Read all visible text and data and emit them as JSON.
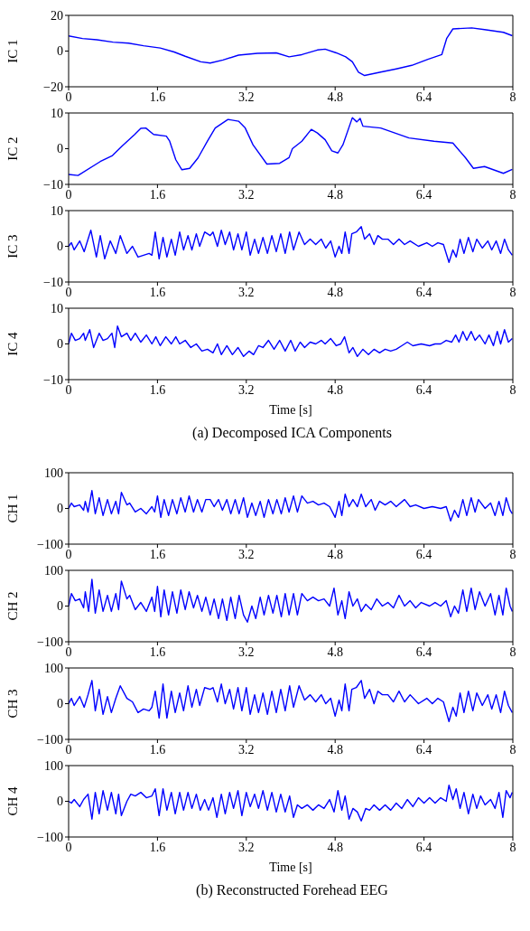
{
  "chart_data": [
    {
      "type": "line",
      "ylabel": "IC 1",
      "color": "#0000ff",
      "xlim": [
        0,
        8
      ],
      "xticks": [
        0,
        1.6,
        3.2,
        4.8,
        6.4,
        8
      ],
      "ylim": [
        -20,
        20
      ],
      "yticks": [
        -20,
        0,
        20
      ],
      "x": [
        0,
        0.25,
        0.51,
        0.8,
        1.08,
        1.35,
        1.65,
        1.9,
        2.1,
        2.38,
        2.55,
        2.78,
        3.06,
        3.4,
        3.74,
        3.97,
        4.2,
        4.48,
        4.62,
        4.82,
        4.99,
        5.11,
        5.22,
        5.33,
        5.62,
        5.9,
        6.18,
        6.47,
        6.72,
        6.81,
        6.92,
        7.26,
        7.49,
        7.83,
        7.99
      ],
      "values": [
        8.5,
        7,
        6.3,
        5,
        4.4,
        3,
        1.7,
        -0.5,
        -2.9,
        -6,
        -6.7,
        -5,
        -2.3,
        -1.3,
        -1,
        -3.2,
        -2,
        0.6,
        1.1,
        -1,
        -3.2,
        -6,
        -11.8,
        -13.7,
        -11.8,
        -10,
        -8,
        -4.6,
        -2,
        7.2,
        12.4,
        13,
        12,
        10.5,
        8.6
      ]
    },
    {
      "type": "line",
      "ylabel": "IC 2",
      "color": "#0000ff",
      "xlim": [
        0,
        8
      ],
      "xticks": [
        0,
        1.6,
        3.2,
        4.8,
        6.4,
        8
      ],
      "ylim": [
        -10,
        10
      ],
      "yticks": [
        -10,
        0,
        10
      ],
      "x": [
        0,
        0.17,
        0.57,
        0.79,
        0.96,
        1.19,
        1.3,
        1.39,
        1.53,
        1.76,
        1.82,
        1.93,
        2.04,
        2.18,
        2.33,
        2.5,
        2.64,
        2.87,
        3.06,
        3.18,
        3.32,
        3.57,
        3.8,
        3.97,
        4.03,
        4.2,
        4.37,
        4.48,
        4.62,
        4.74,
        4.85,
        4.94,
        5.11,
        5.19,
        5.25,
        5.3,
        5.62,
        6.13,
        6.58,
        6.92,
        7.15,
        7.29,
        7.49,
        7.83,
        7.99
      ],
      "values": [
        -7.2,
        -7.5,
        -3.6,
        -1.9,
        0.7,
        4,
        5.7,
        5.8,
        4,
        3.5,
        2.1,
        -3.1,
        -5.9,
        -5.5,
        -2.6,
        2.1,
        5.8,
        8.2,
        7.7,
        5.8,
        1.1,
        -4.3,
        -4.1,
        -2.5,
        0,
        2.1,
        5.4,
        4.4,
        2.5,
        -0.6,
        -1.2,
        1.1,
        8.7,
        7.5,
        8.5,
        6.3,
        5.8,
        3,
        2.1,
        1.6,
        -2.6,
        -5.5,
        -5,
        -6.9,
        -5.8
      ]
    },
    {
      "type": "line",
      "ylabel": "IC 3",
      "color": "#0000ff",
      "xlim": [
        0,
        8
      ],
      "xticks": [
        0,
        1.6,
        3.2,
        4.8,
        6.4,
        8
      ],
      "ylim": [
        -10,
        10
      ],
      "yticks": [
        -10,
        0,
        10
      ],
      "x": [
        0,
        0.05,
        0.1,
        0.2,
        0.28,
        0.4,
        0.5,
        0.57,
        0.65,
        0.75,
        0.85,
        0.93,
        1.05,
        1.15,
        1.25,
        1.35,
        1.45,
        1.5,
        1.56,
        1.63,
        1.7,
        1.77,
        1.85,
        1.92,
        2.0,
        2.07,
        2.15,
        2.22,
        2.3,
        2.36,
        2.45,
        2.55,
        2.6,
        2.68,
        2.75,
        2.82,
        2.9,
        2.97,
        3.05,
        3.12,
        3.2,
        3.27,
        3.35,
        3.42,
        3.5,
        3.58,
        3.66,
        3.74,
        3.82,
        3.9,
        3.98,
        4.05,
        4.15,
        4.25,
        4.35,
        4.45,
        4.55,
        4.63,
        4.72,
        4.8,
        4.87,
        4.92,
        4.98,
        5.05,
        5.1,
        5.18,
        5.27,
        5.33,
        5.42,
        5.5,
        5.57,
        5.65,
        5.75,
        5.85,
        5.95,
        6.05,
        6.15,
        6.3,
        6.45,
        6.55,
        6.65,
        6.75,
        6.85,
        6.92,
        6.98,
        7.05,
        7.12,
        7.2,
        7.28,
        7.35,
        7.45,
        7.55,
        7.62,
        7.7,
        7.78,
        7.85,
        7.92,
        7.99
      ],
      "values": [
        0,
        1,
        -1,
        1.5,
        -1.5,
        4.5,
        -3,
        3,
        -3.5,
        1.5,
        -2,
        3,
        -2,
        0,
        -3,
        -2.5,
        -2,
        -2.5,
        4,
        -3.5,
        2.5,
        -3,
        2,
        -2.5,
        4,
        -1,
        3,
        -1,
        3.5,
        0,
        4,
        3,
        4,
        0,
        4.5,
        0.5,
        4,
        -1,
        3.5,
        -1,
        4,
        -2.5,
        2,
        -2,
        2.5,
        -2,
        3,
        -1.5,
        3.5,
        -2,
        4,
        -1,
        4,
        0.5,
        2,
        0.5,
        2,
        -0.5,
        1.5,
        -3,
        0,
        -2,
        4,
        -2,
        3.5,
        4,
        5.5,
        2,
        3.5,
        0.5,
        3,
        2,
        2,
        0.5,
        2,
        0.5,
        1.5,
        0,
        1,
        0,
        1,
        0.5,
        -4.5,
        -1,
        -3,
        2,
        -2,
        2.5,
        -1.5,
        2,
        -0.5,
        1.5,
        -1,
        1.5,
        -2,
        2,
        -1,
        -2.5
      ]
    },
    {
      "type": "line",
      "ylabel": "IC 4",
      "xlabel": "Time [s]",
      "annotations": [
        "(a) Decomposed ICA Components"
      ],
      "color": "#0000ff",
      "xlim": [
        0,
        8
      ],
      "xticks": [
        0,
        1.6,
        3.2,
        4.8,
        6.4,
        8
      ],
      "ylim": [
        -10,
        10
      ],
      "yticks": [
        -10,
        0,
        10
      ],
      "x": [
        0,
        0.05,
        0.12,
        0.2,
        0.27,
        0.3,
        0.38,
        0.45,
        0.55,
        0.62,
        0.7,
        0.78,
        0.83,
        0.88,
        0.95,
        1.05,
        1.12,
        1.2,
        1.3,
        1.4,
        1.5,
        1.57,
        1.65,
        1.75,
        1.85,
        1.93,
        2.0,
        2.1,
        2.2,
        2.3,
        2.4,
        2.5,
        2.6,
        2.68,
        2.75,
        2.85,
        2.95,
        3.05,
        3.15,
        3.25,
        3.33,
        3.42,
        3.5,
        3.6,
        3.7,
        3.8,
        3.9,
        4.0,
        4.08,
        4.17,
        4.25,
        4.35,
        4.45,
        4.55,
        4.62,
        4.72,
        4.82,
        4.9,
        4.97,
        5.05,
        5.12,
        5.2,
        5.3,
        5.4,
        5.5,
        5.6,
        5.7,
        5.8,
        5.9,
        6.0,
        6.1,
        6.2,
        6.35,
        6.5,
        6.6,
        6.7,
        6.8,
        6.9,
        6.97,
        7.03,
        7.1,
        7.17,
        7.25,
        7.32,
        7.4,
        7.5,
        7.57,
        7.65,
        7.72,
        7.78,
        7.85,
        7.92,
        7.99
      ],
      "values": [
        0,
        3,
        1,
        1.5,
        3,
        1,
        4,
        -1,
        3,
        1,
        1.5,
        3,
        -1,
        5,
        2,
        3,
        1,
        3,
        0.5,
        2.5,
        0,
        2,
        -0.5,
        2,
        0,
        2,
        0,
        1,
        -1,
        0,
        -2,
        -1.5,
        -2.5,
        0,
        -3,
        -0.5,
        -3,
        -1,
        -3.5,
        -2,
        -3,
        -0.5,
        -1,
        1,
        -1.5,
        1,
        -2,
        1,
        -2,
        0.5,
        -1,
        0.5,
        0,
        1,
        0,
        1.5,
        -0.5,
        0,
        2,
        -2.5,
        -1,
        -3.5,
        -1.5,
        -3,
        -1.5,
        -2.5,
        -1.5,
        -2,
        -1.5,
        -0.5,
        0.5,
        -0.5,
        0,
        -0.5,
        0,
        0,
        1,
        0.5,
        2.5,
        0.5,
        3.5,
        1,
        3.5,
        1,
        2.5,
        0,
        2.5,
        -0.5,
        3.5,
        0,
        4,
        0.5,
        1.5
      ]
    },
    {
      "type": "line",
      "ylabel": "CH 1",
      "color": "#0000ff",
      "xlim": [
        0,
        8
      ],
      "xticks": [
        0,
        1.6,
        3.2,
        4.8,
        6.4,
        8
      ],
      "ylim": [
        -100,
        100
      ],
      "yticks": [
        -100,
        0,
        100
      ],
      "x": [
        0,
        0.05,
        0.1,
        0.2,
        0.27,
        0.3,
        0.35,
        0.42,
        0.48,
        0.55,
        0.62,
        0.7,
        0.77,
        0.85,
        0.9,
        0.95,
        1.05,
        1.1,
        1.2,
        1.3,
        1.4,
        1.5,
        1.55,
        1.6,
        1.66,
        1.72,
        1.8,
        1.87,
        1.95,
        2.02,
        2.1,
        2.17,
        2.25,
        2.32,
        2.4,
        2.47,
        2.55,
        2.62,
        2.7,
        2.77,
        2.85,
        2.92,
        3.0,
        3.07,
        3.15,
        3.22,
        3.3,
        3.37,
        3.45,
        3.52,
        3.6,
        3.68,
        3.75,
        3.83,
        3.9,
        3.97,
        4.05,
        4.12,
        4.2,
        4.3,
        4.4,
        4.5,
        4.6,
        4.7,
        4.8,
        4.87,
        4.92,
        4.98,
        5.05,
        5.12,
        5.2,
        5.27,
        5.35,
        5.45,
        5.52,
        5.6,
        5.7,
        5.8,
        5.9,
        6.05,
        6.15,
        6.25,
        6.4,
        6.55,
        6.7,
        6.8,
        6.88,
        6.95,
        7.02,
        7.1,
        7.17,
        7.25,
        7.32,
        7.38,
        7.5,
        7.6,
        7.68,
        7.75,
        7.82,
        7.88,
        7.95,
        7.99
      ],
      "values": [
        0,
        15,
        5,
        10,
        -5,
        20,
        -10,
        50,
        -15,
        30,
        -20,
        25,
        -15,
        20,
        -15,
        45,
        10,
        15,
        -10,
        0,
        -15,
        5,
        -10,
        35,
        -25,
        25,
        -20,
        25,
        -15,
        30,
        -10,
        35,
        -10,
        25,
        -10,
        25,
        25,
        5,
        25,
        -5,
        25,
        -15,
        25,
        -15,
        30,
        -25,
        15,
        -20,
        20,
        -25,
        25,
        -15,
        25,
        -15,
        30,
        -10,
        35,
        -10,
        35,
        15,
        20,
        10,
        15,
        5,
        -25,
        20,
        -20,
        40,
        5,
        25,
        5,
        40,
        5,
        25,
        -5,
        20,
        10,
        20,
        5,
        25,
        5,
        10,
        0,
        5,
        0,
        5,
        -35,
        -5,
        -25,
        25,
        -20,
        30,
        -10,
        25,
        0,
        15,
        -20,
        20,
        -20,
        30,
        -5,
        -15
      ]
    },
    {
      "type": "line",
      "ylabel": "CH 2",
      "color": "#0000ff",
      "xlim": [
        0,
        8
      ],
      "xticks": [
        0,
        1.6,
        3.2,
        4.8,
        6.4,
        8
      ],
      "ylim": [
        -100,
        100
      ],
      "yticks": [
        -100,
        0,
        100
      ],
      "x": [
        0,
        0.05,
        0.12,
        0.2,
        0.27,
        0.3,
        0.36,
        0.42,
        0.48,
        0.55,
        0.62,
        0.7,
        0.77,
        0.85,
        0.9,
        0.95,
        1.05,
        1.1,
        1.2,
        1.3,
        1.4,
        1.5,
        1.55,
        1.6,
        1.66,
        1.72,
        1.8,
        1.87,
        1.95,
        2.02,
        2.1,
        2.17,
        2.25,
        2.32,
        2.4,
        2.47,
        2.55,
        2.62,
        2.7,
        2.77,
        2.85,
        2.92,
        3.0,
        3.07,
        3.15,
        3.22,
        3.3,
        3.37,
        3.45,
        3.52,
        3.6,
        3.68,
        3.75,
        3.83,
        3.9,
        3.97,
        4.05,
        4.12,
        4.2,
        4.3,
        4.4,
        4.5,
        4.6,
        4.7,
        4.78,
        4.85,
        4.92,
        4.98,
        5.05,
        5.12,
        5.2,
        5.27,
        5.35,
        5.45,
        5.55,
        5.65,
        5.75,
        5.85,
        5.95,
        6.05,
        6.15,
        6.25,
        6.35,
        6.5,
        6.6,
        6.7,
        6.8,
        6.88,
        6.95,
        7.02,
        7.1,
        7.17,
        7.25,
        7.32,
        7.4,
        7.5,
        7.6,
        7.68,
        7.75,
        7.82,
        7.88,
        7.95,
        7.99
      ],
      "values": [
        0,
        35,
        15,
        20,
        -5,
        40,
        -15,
        75,
        -20,
        45,
        -15,
        30,
        -15,
        35,
        -10,
        70,
        20,
        30,
        -10,
        10,
        -15,
        25,
        -15,
        55,
        -30,
        45,
        -25,
        40,
        -20,
        45,
        -10,
        40,
        -5,
        30,
        -15,
        25,
        -25,
        20,
        -35,
        20,
        -40,
        25,
        -35,
        30,
        -25,
        -45,
        0,
        -35,
        25,
        -25,
        30,
        -20,
        30,
        -30,
        35,
        -25,
        35,
        -25,
        35,
        15,
        25,
        15,
        20,
        0,
        50,
        -25,
        15,
        -35,
        40,
        0,
        20,
        -15,
        5,
        -10,
        20,
        0,
        10,
        -5,
        30,
        0,
        15,
        -5,
        10,
        0,
        10,
        0,
        15,
        -30,
        0,
        -20,
        45,
        -15,
        50,
        -10,
        40,
        0,
        35,
        -25,
        30,
        -25,
        50,
        0,
        -15
      ]
    },
    {
      "type": "line",
      "ylabel": "CH 3",
      "color": "#0000ff",
      "xlim": [
        0,
        8
      ],
      "xticks": [
        0,
        1.6,
        3.2,
        4.8,
        6.4,
        8
      ],
      "ylim": [
        -100,
        100
      ],
      "yticks": [
        -100,
        0,
        100
      ],
      "x": [
        0,
        0.05,
        0.1,
        0.2,
        0.28,
        0.35,
        0.42,
        0.48,
        0.55,
        0.62,
        0.7,
        0.77,
        0.85,
        0.93,
        1.05,
        1.15,
        1.25,
        1.35,
        1.45,
        1.5,
        1.56,
        1.63,
        1.7,
        1.77,
        1.85,
        1.92,
        2.0,
        2.07,
        2.15,
        2.22,
        2.3,
        2.36,
        2.45,
        2.55,
        2.6,
        2.68,
        2.75,
        2.82,
        2.9,
        2.97,
        3.05,
        3.12,
        3.2,
        3.27,
        3.35,
        3.42,
        3.5,
        3.58,
        3.66,
        3.74,
        3.82,
        3.9,
        3.98,
        4.05,
        4.15,
        4.25,
        4.35,
        4.45,
        4.55,
        4.63,
        4.72,
        4.8,
        4.87,
        4.92,
        4.98,
        5.05,
        5.1,
        5.18,
        5.27,
        5.33,
        5.42,
        5.5,
        5.57,
        5.65,
        5.75,
        5.85,
        5.95,
        6.05,
        6.15,
        6.3,
        6.45,
        6.55,
        6.65,
        6.75,
        6.85,
        6.92,
        6.98,
        7.05,
        7.12,
        7.2,
        7.28,
        7.35,
        7.45,
        7.55,
        7.62,
        7.7,
        7.78,
        7.85,
        7.92,
        7.99
      ],
      "values": [
        0,
        15,
        -5,
        20,
        -10,
        25,
        65,
        -20,
        40,
        -30,
        20,
        -25,
        15,
        50,
        15,
        5,
        -25,
        -15,
        -20,
        -10,
        35,
        -40,
        55,
        -40,
        35,
        -25,
        30,
        -20,
        50,
        -10,
        40,
        -5,
        45,
        40,
        45,
        5,
        55,
        0,
        40,
        -15,
        45,
        -20,
        45,
        -30,
        25,
        -25,
        30,
        -30,
        35,
        -25,
        40,
        -20,
        50,
        -10,
        50,
        10,
        25,
        5,
        25,
        0,
        15,
        -35,
        10,
        -20,
        55,
        -20,
        40,
        45,
        65,
        15,
        40,
        0,
        35,
        25,
        25,
        5,
        35,
        5,
        25,
        0,
        15,
        0,
        15,
        5,
        -50,
        -10,
        -35,
        30,
        -25,
        35,
        -20,
        30,
        -5,
        25,
        -15,
        25,
        -25,
        35,
        -5,
        -25
      ]
    },
    {
      "type": "line",
      "ylabel": "CH 4",
      "xlabel": "Time [s]",
      "annotations": [
        "(b) Reconstructed Forehead EEG"
      ],
      "color": "#0000ff",
      "xlim": [
        0,
        8
      ],
      "xticks": [
        0,
        1.6,
        3.2,
        4.8,
        6.4,
        8
      ],
      "ylim": [
        -100,
        100
      ],
      "yticks": [
        -100,
        0,
        100
      ],
      "x": [
        0,
        0.05,
        0.1,
        0.2,
        0.27,
        0.35,
        0.42,
        0.48,
        0.55,
        0.62,
        0.7,
        0.77,
        0.85,
        0.9,
        0.95,
        1.05,
        1.12,
        1.2,
        1.3,
        1.4,
        1.5,
        1.56,
        1.63,
        1.7,
        1.77,
        1.85,
        1.92,
        2.0,
        2.07,
        2.15,
        2.22,
        2.3,
        2.37,
        2.45,
        2.52,
        2.6,
        2.67,
        2.75,
        2.82,
        2.9,
        2.97,
        3.05,
        3.12,
        3.2,
        3.27,
        3.35,
        3.42,
        3.5,
        3.58,
        3.66,
        3.74,
        3.82,
        3.9,
        3.98,
        4.05,
        4.12,
        4.2,
        4.3,
        4.4,
        4.5,
        4.6,
        4.7,
        4.78,
        4.85,
        4.92,
        4.98,
        5.05,
        5.12,
        5.2,
        5.27,
        5.35,
        5.42,
        5.5,
        5.6,
        5.7,
        5.8,
        5.9,
        6.0,
        6.1,
        6.2,
        6.3,
        6.4,
        6.5,
        6.6,
        6.7,
        6.8,
        6.85,
        6.92,
        6.98,
        7.05,
        7.12,
        7.2,
        7.28,
        7.35,
        7.42,
        7.5,
        7.6,
        7.68,
        7.75,
        7.82,
        7.88,
        7.95,
        7.99
      ],
      "values": [
        0,
        -5,
        5,
        -15,
        5,
        20,
        -50,
        25,
        -35,
        30,
        -25,
        25,
        -35,
        20,
        -40,
        0,
        20,
        15,
        25,
        10,
        15,
        35,
        -40,
        35,
        -25,
        25,
        -35,
        25,
        -25,
        25,
        -20,
        20,
        -25,
        5,
        -25,
        10,
        -45,
        20,
        -35,
        25,
        -20,
        30,
        -40,
        25,
        -15,
        20,
        -20,
        30,
        -25,
        25,
        -30,
        20,
        -30,
        15,
        -45,
        -10,
        -20,
        -10,
        -25,
        -10,
        -20,
        5,
        -30,
        30,
        -25,
        15,
        -50,
        -20,
        -30,
        -55,
        -20,
        -25,
        -10,
        -25,
        -10,
        -25,
        -5,
        -20,
        5,
        -15,
        10,
        -5,
        10,
        -5,
        10,
        0,
        45,
        5,
        35,
        -20,
        25,
        -35,
        20,
        -20,
        15,
        -10,
        5,
        -20,
        25,
        -45,
        30,
        10,
        25
      ]
    }
  ]
}
